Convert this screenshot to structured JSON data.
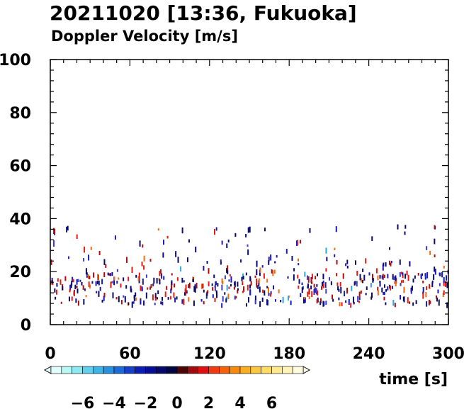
{
  "chart_data": {
    "type": "scatter",
    "title": "20211020 [13:36, Fukuoka]",
    "subtitle": "Doppler Velocity [m/s]",
    "xlabel": "time [s]",
    "ylabel": "",
    "xlim": [
      0,
      300
    ],
    "ylim": [
      0,
      100
    ],
    "x_ticks": [
      "0",
      "60",
      "120",
      "180",
      "240",
      "300"
    ],
    "y_ticks": [
      "0",
      "20",
      "40",
      "60",
      "80",
      "100"
    ],
    "colorbar": {
      "range": [
        -8,
        8
      ],
      "tick_labels": [
        "−6",
        "−4",
        "−2",
        "0",
        "2",
        "4",
        "6"
      ],
      "tick_values": [
        -6,
        -4,
        -2,
        0,
        2,
        4,
        6
      ],
      "colors": [
        "#e0fffc",
        "#b8f8f4",
        "#8ee8f0",
        "#62d0ec",
        "#3cb4e6",
        "#2a90e0",
        "#1e6ad6",
        "#1640c8",
        "#0c1cb4",
        "#060e94",
        "#040a6a",
        "#02063e",
        "#4a0606",
        "#a00c0c",
        "#e01010",
        "#f03a10",
        "#f4620c",
        "#f68a0a",
        "#f8ae20",
        "#fac840",
        "#fcdc66",
        "#fde98e",
        "#fef3b8",
        "#fffbe0"
      ]
    }
  }
}
